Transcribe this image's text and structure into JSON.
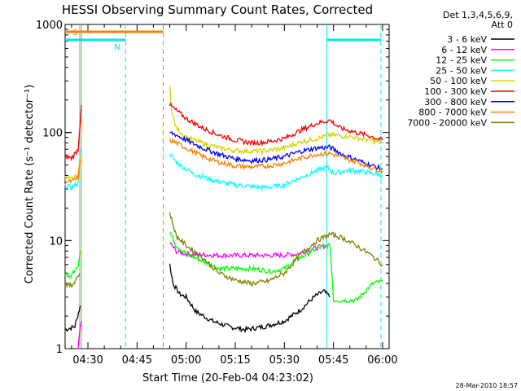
{
  "chart_data": {
    "type": "line",
    "title": "HESSI Observing Summary Count Rates, Corrected",
    "xlabel": "Start Time (20-Feb-04 04:23:02)",
    "ylabel": "Corrected Count Rate (s⁻¹ detector⁻¹)",
    "ylim": [
      1,
      1000
    ],
    "yscale": "log",
    "xlim": [
      "04:23:02",
      "06:02:00"
    ],
    "x_ticks": [
      "04:30",
      "04:45",
      "05:00",
      "05:15",
      "05:30",
      "05:45",
      "06:00"
    ],
    "y_ticks": [
      "1",
      "10",
      "100",
      "1000"
    ],
    "grid": false,
    "legend_title": [
      "Det 1,3,4,5,6,9,",
      "Att 0"
    ],
    "legend_placement": "right",
    "timestamp": "28-Mar-2010 18:57",
    "flags": [
      {
        "label": "S",
        "color": "#ff8000",
        "start": "04:23:02",
        "end": "04:53:00"
      },
      {
        "label": "N",
        "color": "#00e5ee",
        "start": "04:23:02",
        "end": "04:41:30"
      },
      {
        "label": "",
        "color": "#00e5ee",
        "start": "05:43:00",
        "end": "05:59:30"
      }
    ],
    "vlines": [
      {
        "time": "04:27:30",
        "color": "#00e5ee",
        "dash": "solid"
      },
      {
        "time": "04:41:30",
        "color": "#00e5ee",
        "dash": "dashed"
      },
      {
        "time": "04:53:00",
        "color": "#ff8000",
        "dash": "dashed"
      },
      {
        "time": "05:43:00",
        "color": "#00e5ee",
        "dash": "solid"
      },
      {
        "time": "05:59:30",
        "color": "#00e5ee",
        "dash": "dashed"
      },
      {
        "time": "04:28:00",
        "color": "#ff8000",
        "dash": "solid"
      }
    ],
    "series": [
      {
        "name": "3 - 6 keV",
        "color": "#000000",
        "segments": [
          [
            [
              "04:23:02",
              1.5
            ],
            [
              "04:26:00",
              1.6
            ],
            [
              "04:27:40",
              2.5
            ]
          ],
          [
            [
              "04:55:00",
              6.0
            ],
            [
              "04:56:00",
              4.0
            ],
            [
              "04:58:00",
              3.2
            ],
            [
              "05:00:00",
              3.0
            ],
            [
              "05:03:00",
              2.2
            ],
            [
              "05:08:00",
              1.8
            ],
            [
              "05:13:00",
              1.6
            ],
            [
              "05:18:00",
              1.5
            ],
            [
              "05:24:00",
              1.6
            ],
            [
              "05:30:00",
              1.8
            ],
            [
              "05:35:00",
              2.3
            ],
            [
              "05:39:00",
              3.0
            ],
            [
              "05:42:00",
              3.4
            ],
            [
              "05:44:00",
              3.0
            ]
          ]
        ]
      },
      {
        "name": "6 - 12 keV",
        "color": "#ff00ff",
        "segments": [
          [
            [
              "04:27:00",
              1.0
            ],
            [
              "04:27:40",
              1.6
            ],
            [
              "04:28:10",
              1.8
            ]
          ],
          [
            [
              "04:55:00",
              9.5
            ],
            [
              "04:57:00",
              8.0
            ],
            [
              "05:00:00",
              7.5
            ],
            [
              "05:10:00",
              7.3
            ],
            [
              "05:20:00",
              7.3
            ],
            [
              "05:28:00",
              7.3
            ],
            [
              "05:34:00",
              7.5
            ],
            [
              "05:38:00",
              8.3
            ],
            [
              "05:43:00",
              9.0
            ]
          ]
        ]
      },
      {
        "name": "12 - 25 keV",
        "color": "#00ff00",
        "segments": [
          [
            [
              "04:23:02",
              5.0
            ],
            [
              "04:24:30",
              4.5
            ],
            [
              "04:26:00",
              5.5
            ],
            [
              "04:27:00",
              6.0
            ],
            [
              "04:27:40",
              8.0
            ]
          ],
          [
            [
              "04:55:00",
              12.0
            ],
            [
              "04:57:00",
              9.0
            ],
            [
              "05:00:00",
              7.5
            ],
            [
              "05:05:00",
              6.5
            ],
            [
              "05:10:00",
              5.5
            ],
            [
              "05:15:00",
              5.5
            ],
            [
              "05:20:00",
              5.5
            ],
            [
              "05:26:00",
              5.2
            ],
            [
              "05:30:00",
              5.5
            ],
            [
              "05:35:00",
              7.0
            ],
            [
              "05:40:00",
              8.5
            ],
            [
              "05:44:00",
              9.0
            ],
            [
              "05:45:00",
              2.8
            ],
            [
              "05:52:00",
              2.8
            ],
            [
              "05:57:00",
              4.0
            ],
            [
              "06:00:00",
              4.2
            ]
          ]
        ]
      },
      {
        "name": "25 - 50 keV",
        "color": "#00ffff",
        "segments": [
          [
            [
              "04:23:02",
              32
            ],
            [
              "04:25:00",
              31
            ],
            [
              "04:27:00",
              34
            ],
            [
              "04:27:40",
              70
            ]
          ],
          [
            [
              "04:55:00",
              62
            ],
            [
              "04:58:00",
              50
            ],
            [
              "05:02:00",
              42
            ],
            [
              "05:07:00",
              37
            ],
            [
              "05:12:00",
              34
            ],
            [
              "05:18:00",
              32
            ],
            [
              "05:24:00",
              31
            ],
            [
              "05:29:00",
              32
            ],
            [
              "05:33:00",
              36
            ],
            [
              "05:38:00",
              42
            ],
            [
              "05:43:00",
              48
            ],
            [
              "05:45:00",
              42
            ],
            [
              "05:50:00",
              45
            ],
            [
              "05:55:00",
              43
            ],
            [
              "06:00:00",
              40
            ]
          ]
        ]
      },
      {
        "name": "50 - 100 keV",
        "color": "#d4d400",
        "segments": [
          [
            [
              "04:23:02",
              38
            ],
            [
              "04:25:00",
              37
            ],
            [
              "04:27:00",
              40
            ],
            [
              "04:27:40",
              60
            ]
          ],
          [
            [
              "04:55:00",
              280
            ],
            [
              "04:55:40",
              150
            ],
            [
              "04:57:00",
              110
            ],
            [
              "05:00:00",
              90
            ],
            [
              "05:05:00",
              80
            ],
            [
              "05:10:00",
              72
            ],
            [
              "05:15:00",
              68
            ],
            [
              "05:20:00",
              67
            ],
            [
              "05:25:00",
              68
            ],
            [
              "05:30:00",
              72
            ],
            [
              "05:35:00",
              82
            ],
            [
              "05:40:00",
              88
            ],
            [
              "05:44:00",
              95
            ],
            [
              "05:50:00",
              92
            ],
            [
              "05:55:00",
              86
            ],
            [
              "06:00:00",
              80
            ]
          ]
        ]
      },
      {
        "name": "100 - 300 keV",
        "color": "#ff0000",
        "segments": [
          [
            [
              "04:23:02",
              60
            ],
            [
              "04:25:00",
              58
            ],
            [
              "04:27:00",
              70
            ],
            [
              "04:28:00",
              180
            ]
          ],
          [
            [
              "04:55:00",
              180
            ],
            [
              "04:57:00",
              160
            ],
            [
              "05:00:00",
              135
            ],
            [
              "05:05:00",
              110
            ],
            [
              "05:10:00",
              95
            ],
            [
              "05:15:00",
              85
            ],
            [
              "05:20:00",
              80
            ],
            [
              "05:25:00",
              82
            ],
            [
              "05:30:00",
              88
            ],
            [
              "05:35:00",
              105
            ],
            [
              "05:40:00",
              122
            ],
            [
              "05:44:00",
              130
            ],
            [
              "05:47:00",
              110
            ],
            [
              "05:52:00",
              100
            ],
            [
              "05:56:00",
              93
            ],
            [
              "06:00:00",
              85
            ]
          ]
        ]
      },
      {
        "name": "300 - 800 keV",
        "color": "#0000ff",
        "segments": [
          [
            [
              "04:55:00",
              100
            ],
            [
              "04:57:00",
              95
            ],
            [
              "05:00:00",
              85
            ],
            [
              "05:05:00",
              72
            ],
            [
              "05:10:00",
              63
            ],
            [
              "05:15:00",
              57
            ],
            [
              "05:20:00",
              55
            ],
            [
              "05:25:00",
              56
            ],
            [
              "05:30:00",
              60
            ],
            [
              "05:35:00",
              67
            ],
            [
              "05:40:00",
              72
            ],
            [
              "05:44:00",
              73
            ],
            [
              "05:48:00",
              62
            ],
            [
              "05:52:00",
              56
            ],
            [
              "05:56:00",
              50
            ],
            [
              "06:00:00",
              46
            ]
          ]
        ]
      },
      {
        "name": "800 - 7000 keV",
        "color": "#ff8000",
        "segments": [
          [
            [
              "04:23:02",
              36
            ],
            [
              "04:25:00",
              35
            ],
            [
              "04:27:00",
              38
            ],
            [
              "04:27:40",
              55
            ]
          ],
          [
            [
              "04:55:00",
              85
            ],
            [
              "04:57:00",
              80
            ],
            [
              "05:00:00",
              72
            ],
            [
              "05:05:00",
              60
            ],
            [
              "05:10:00",
              53
            ],
            [
              "05:15:00",
              49
            ],
            [
              "05:20:00",
              48
            ],
            [
              "05:25:00",
              49
            ],
            [
              "05:30:00",
              52
            ],
            [
              "05:35:00",
              58
            ],
            [
              "05:40:00",
              63
            ],
            [
              "05:44:00",
              64
            ],
            [
              "05:48:00",
              58
            ],
            [
              "05:52:00",
              54
            ],
            [
              "05:56:00",
              48
            ],
            [
              "06:00:00",
              44
            ]
          ]
        ]
      },
      {
        "name": "7000 - 20000 keV",
        "color": "#808000",
        "segments": [
          [
            [
              "04:23:02",
              4.0
            ],
            [
              "04:25:00",
              3.8
            ],
            [
              "04:26:30",
              4.5
            ],
            [
              "04:27:30",
              5.0
            ]
          ],
          [
            [
              "04:55:00",
              18.0
            ],
            [
              "04:57:00",
              11.0
            ],
            [
              "05:00:00",
              9.0
            ],
            [
              "05:05:00",
              7.0
            ],
            [
              "05:10:00",
              5.0
            ],
            [
              "05:15:00",
              4.3
            ],
            [
              "05:20:00",
              4.0
            ],
            [
              "05:25:00",
              4.2
            ],
            [
              "05:30:00",
              5.0
            ],
            [
              "05:35:00",
              7.5
            ],
            [
              "05:40:00",
              10.0
            ],
            [
              "05:44:00",
              11.5
            ],
            [
              "05:48:00",
              10.5
            ],
            [
              "05:52:00",
              9.0
            ],
            [
              "05:56:00",
              7.5
            ],
            [
              "06:00:00",
              6.0
            ]
          ]
        ]
      }
    ]
  }
}
